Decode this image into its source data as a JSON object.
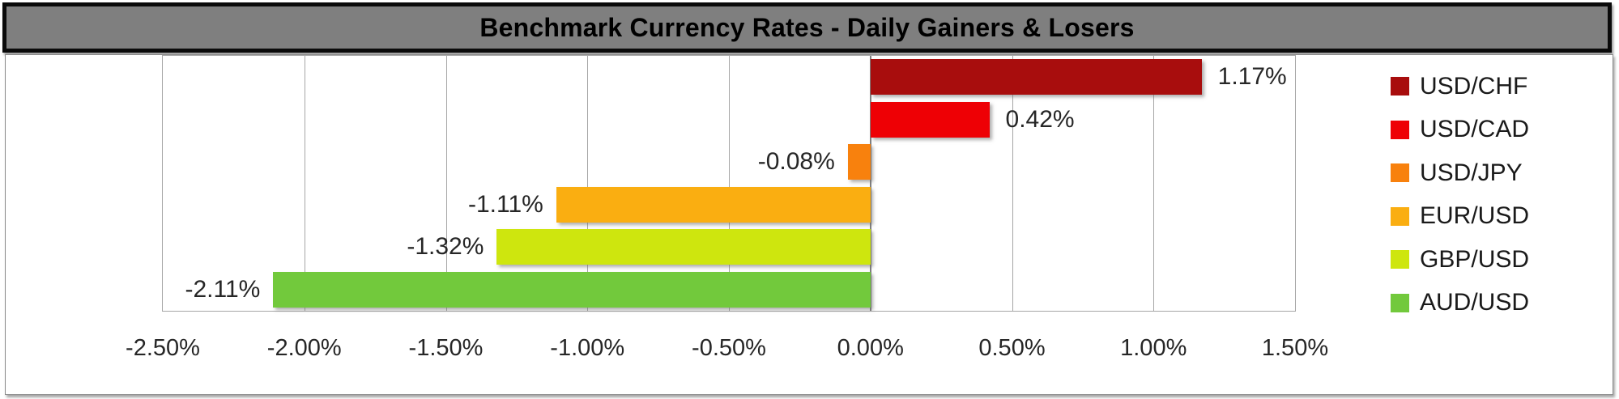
{
  "chart_data": {
    "type": "bar",
    "orientation": "horizontal",
    "title": "Benchmark Currency Rates - Daily Gainers & Losers",
    "categories": [
      "USD/CHF",
      "USD/CAD",
      "USD/JPY",
      "EUR/USD",
      "GBP/USD",
      "AUD/USD"
    ],
    "values": [
      1.17,
      0.42,
      -0.08,
      -1.11,
      -1.32,
      -2.11
    ],
    "labels": [
      "1.17%",
      "0.42%",
      "-0.08%",
      "-1.11%",
      "-1.32%",
      "-2.11%"
    ],
    "bar_colors": [
      "#A80D0D",
      "#EE0005",
      "#F8810D",
      "#FAAE11",
      "#CEE60E",
      "#72C93C"
    ],
    "xlim": [
      -2.5,
      1.5
    ],
    "x_ticks": [
      {
        "value": -2.5,
        "label": "-2.50%"
      },
      {
        "value": -2.0,
        "label": "-2.00%"
      },
      {
        "value": -1.5,
        "label": "-1.50%"
      },
      {
        "value": -1.0,
        "label": "-1.00%"
      },
      {
        "value": -0.5,
        "label": "-0.50%"
      },
      {
        "value": 0.0,
        "label": "0.00%"
      },
      {
        "value": 0.5,
        "label": "0.50%"
      },
      {
        "value": 1.0,
        "label": "1.00%"
      },
      {
        "value": 1.5,
        "label": "1.50%"
      }
    ],
    "grid": "vertical",
    "legend_position": "right",
    "colors": {
      "title_background": "#7F7F7F",
      "title_border": "#0a0a0a",
      "gridline": "#A6A6A6",
      "zero_line": "#808080"
    }
  }
}
